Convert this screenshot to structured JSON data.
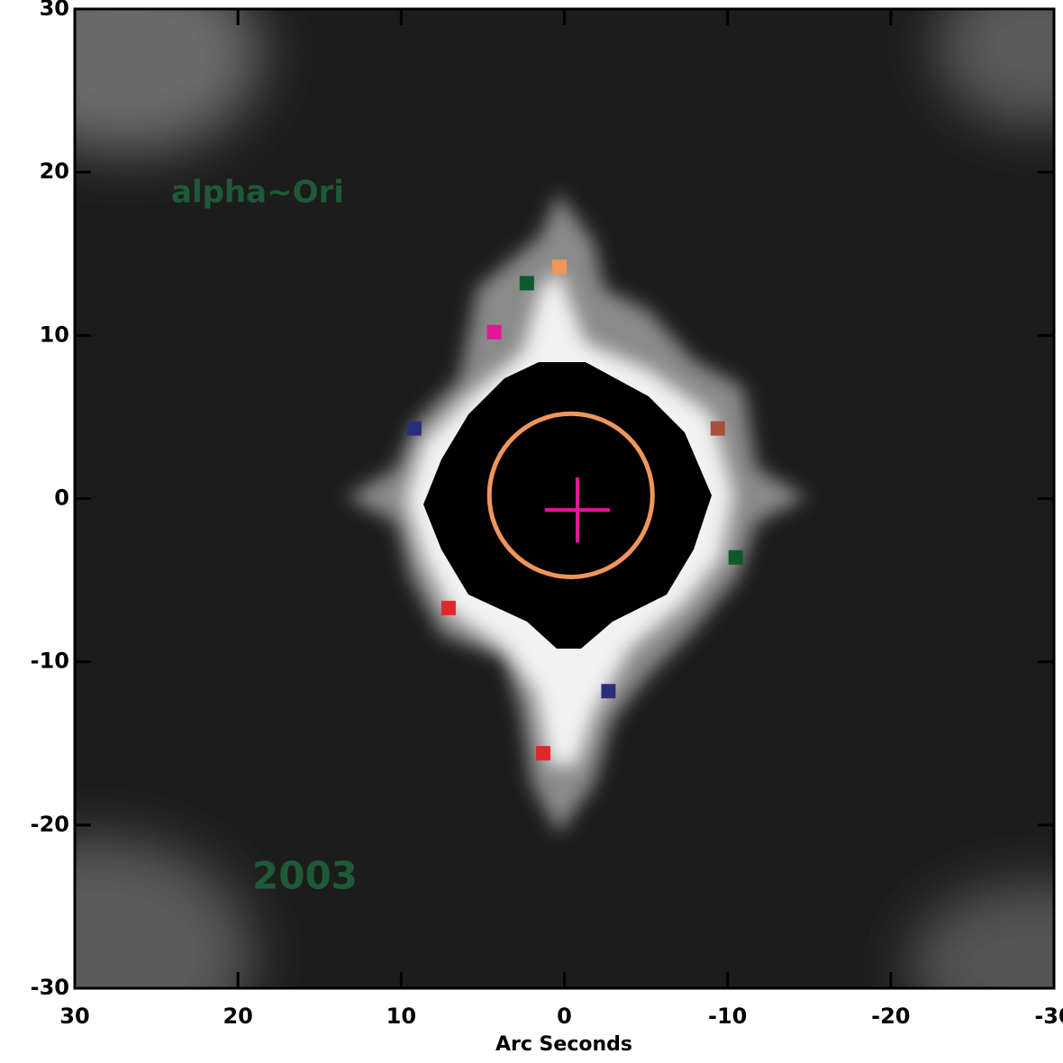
{
  "chart_data": {
    "type": "scatter",
    "xlabel": "Arc Seconds",
    "xlim": [
      30,
      -30
    ],
    "ylim": [
      -30,
      30
    ],
    "xticks": [
      30,
      20,
      10,
      0,
      -10,
      -20,
      -30
    ],
    "yticks": [
      30,
      20,
      10,
      0,
      -10,
      -20,
      -30
    ],
    "annotations": [
      "alpha~Ori",
      "2003"
    ],
    "points": {
      "x": [
        0.3,
        2.3,
        4.3,
        9.2,
        -9.4,
        -10.5,
        7.1,
        -2.7,
        1.3
      ],
      "y": [
        14.2,
        13.2,
        10.2,
        4.3,
        4.3,
        -3.6,
        -6.7,
        -11.8,
        -15.6
      ],
      "colors": [
        "#f0965a",
        "#0d5a2c",
        "#e0189a",
        "#2a2f7c",
        "#a8503a",
        "#0d5a2c",
        "#e02828",
        "#2a2f7c",
        "#e02828"
      ]
    },
    "circle": {
      "x": -0.4,
      "y": 0.2,
      "r": 5,
      "color": "#f0965a"
    },
    "cross": {
      "x": -0.8,
      "y": -0.7,
      "size": 2,
      "color": "#e0189a"
    }
  }
}
